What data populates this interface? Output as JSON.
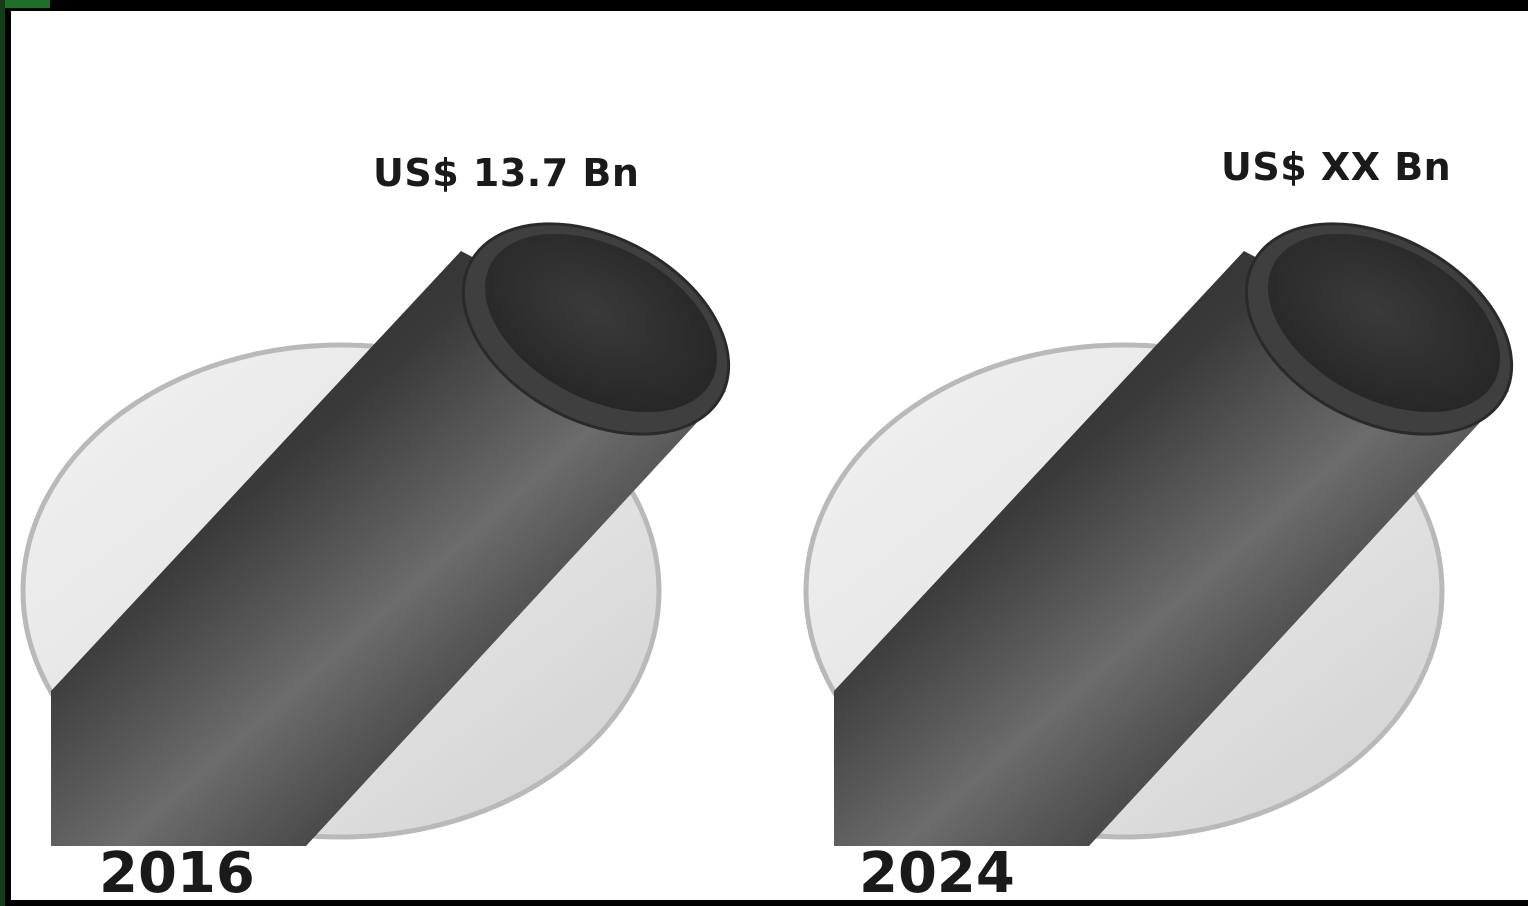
{
  "panels": [
    {
      "year": "2016",
      "value_label": "US$ 13.7 Bn"
    },
    {
      "year": "2024",
      "value_label": "US$ XX Bn"
    }
  ],
  "colors": {
    "border": "#000000",
    "accent": "#1f6f2a",
    "background": "#ffffff",
    "disc_fill": "#e4e4e4",
    "disc_edge": "#b9b9b9",
    "pipe_dark": "#2a2a2a",
    "pipe_light": "#6e6e6e",
    "text": "#1a1a1a"
  },
  "icons": [
    "pipe-on-disc-illustration",
    "pipe-on-disc-illustration"
  ]
}
